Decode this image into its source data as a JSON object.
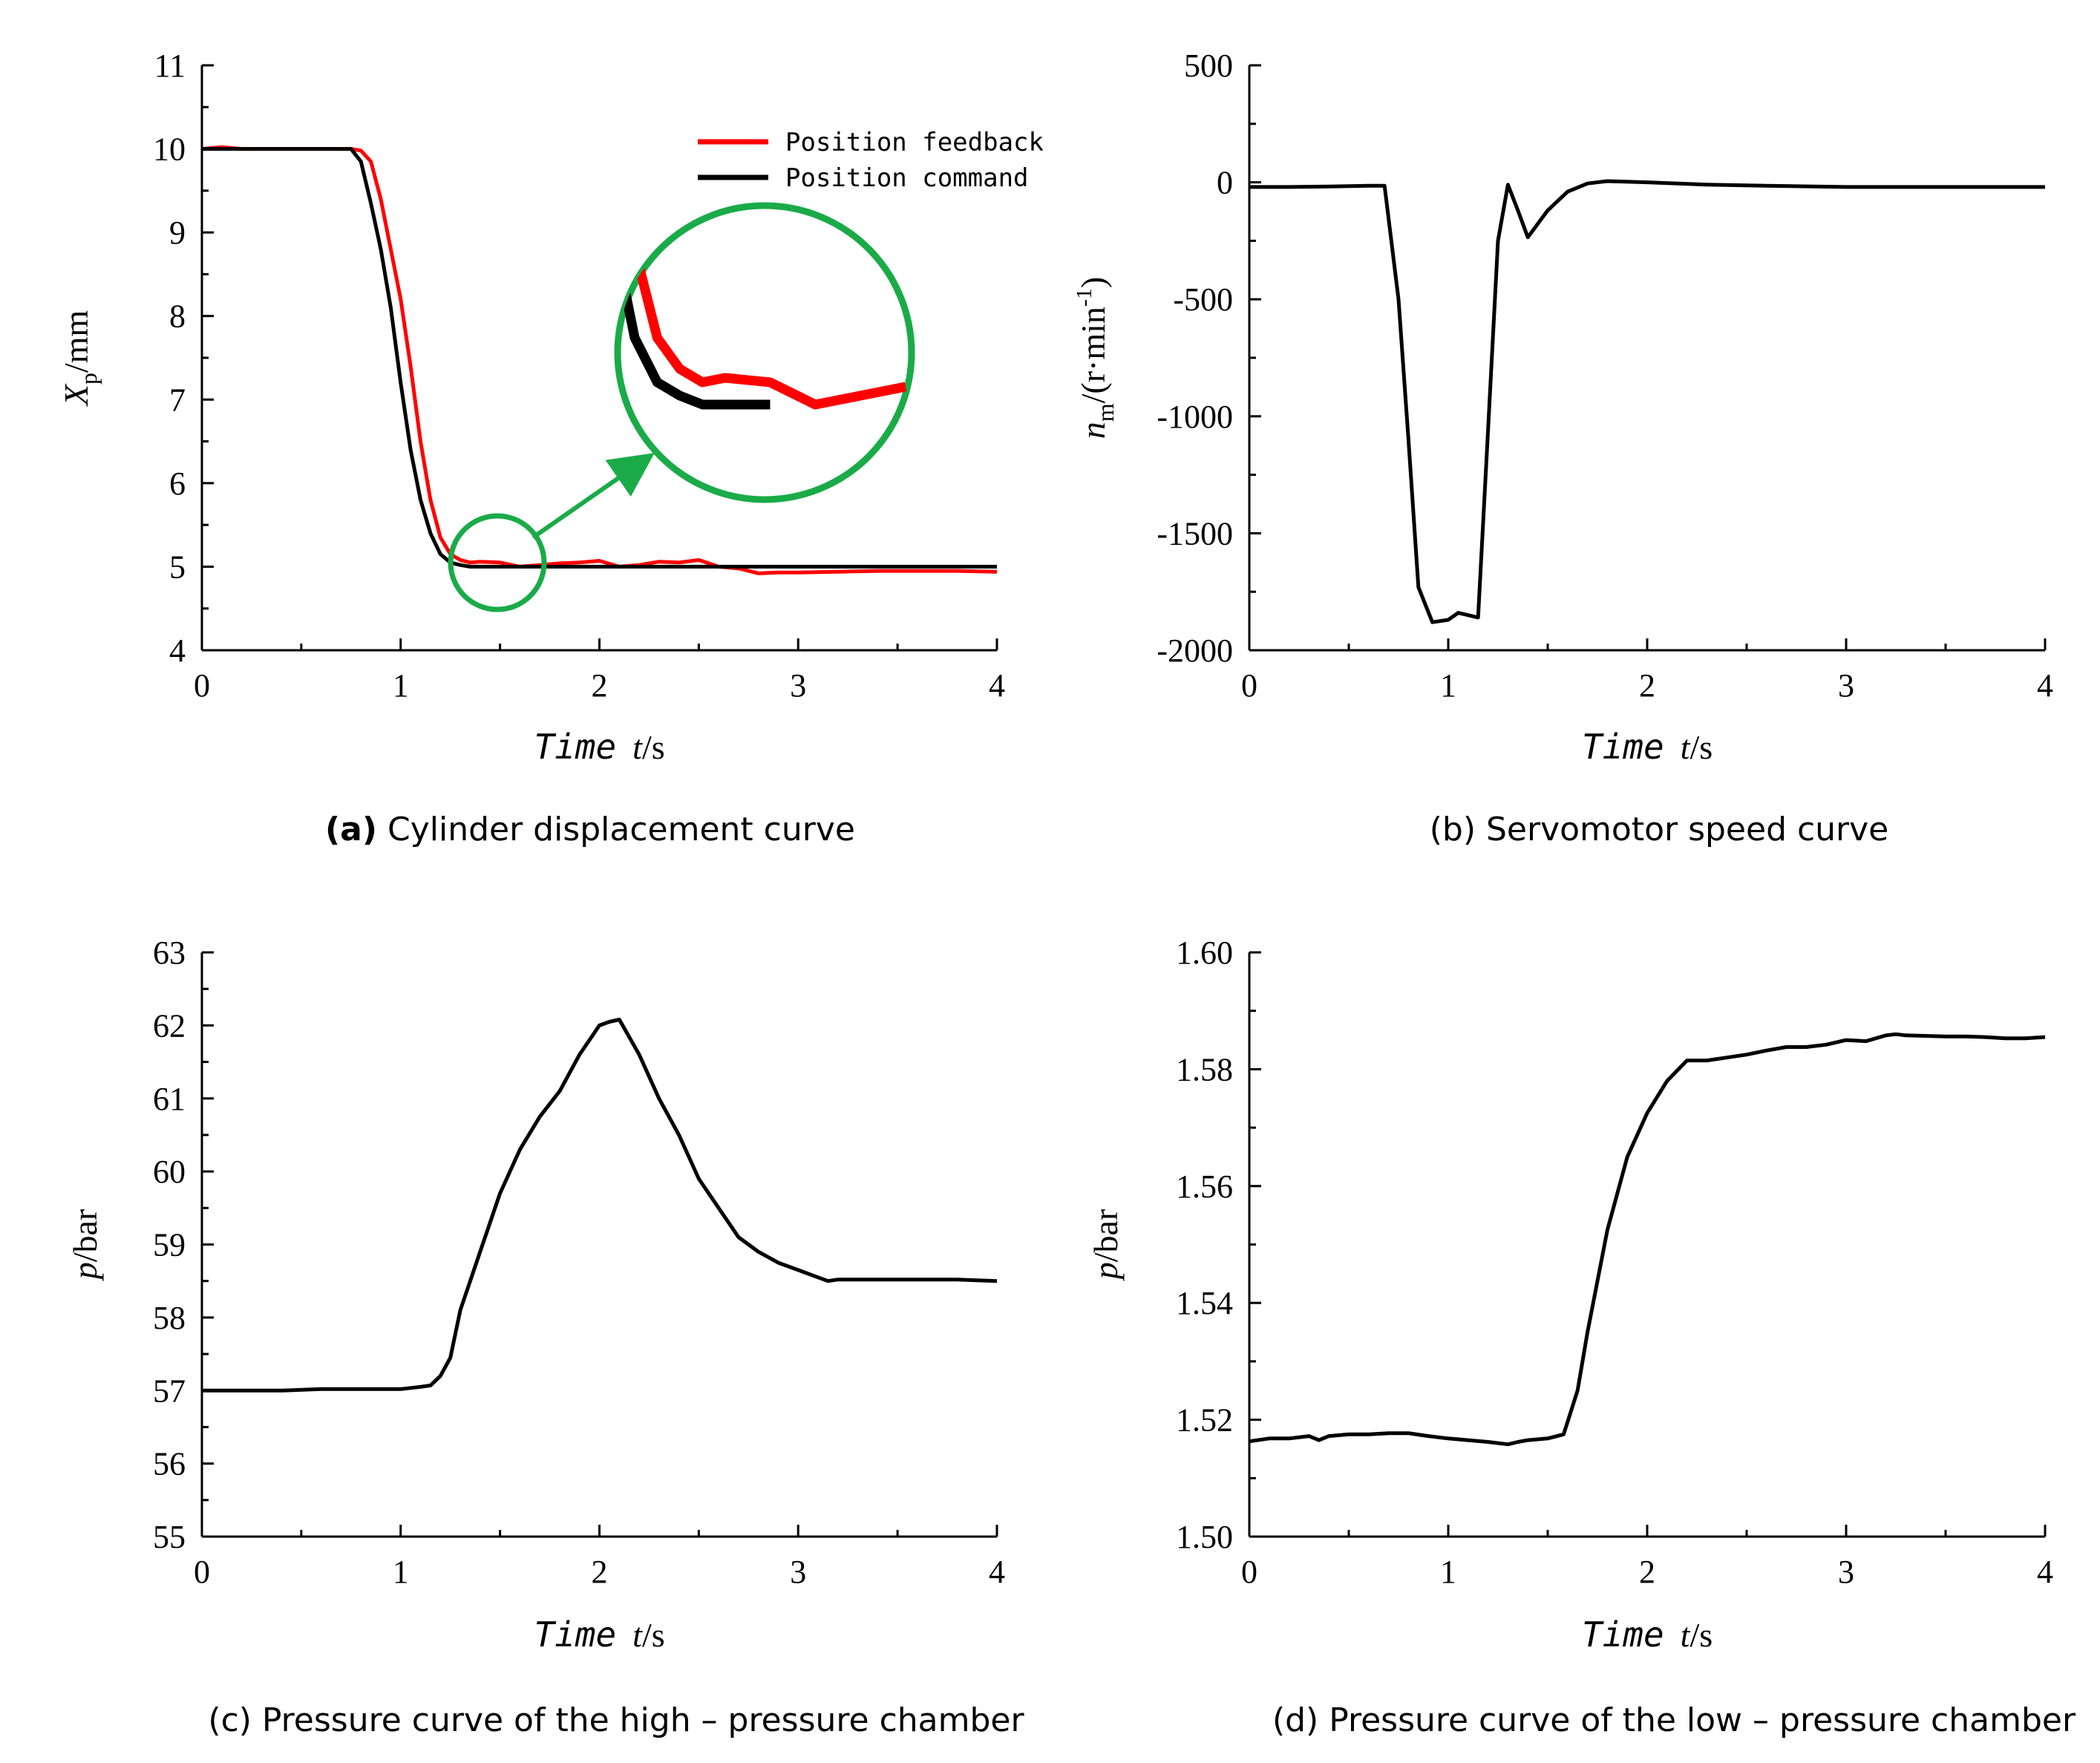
{
  "chart_data": [
    {
      "id": "a",
      "type": "line",
      "caption_bold": "(a)",
      "caption": "Cylinder displacement curve",
      "xlabel_italic": "Time",
      "xlabel_var": "t",
      "xlabel_unit": "/s",
      "ylabel_var": "X",
      "ylabel_sub": "p",
      "ylabel_unit": "/mm",
      "xlim": [
        0,
        4
      ],
      "ylim": [
        4,
        11
      ],
      "xticks": [
        0,
        1,
        2,
        3,
        4
      ],
      "yticks": [
        4,
        5,
        6,
        7,
        8,
        9,
        10,
        11
      ],
      "xticklabels": [
        "0",
        "1",
        "2",
        "3",
        "4"
      ],
      "yticklabels": [
        "4",
        "5",
        "6",
        "7",
        "8",
        "9",
        "10",
        "11"
      ],
      "legend_position": "top-right",
      "has_zoom_inset": true,
      "series": [
        {
          "name": "Position feedback",
          "color": "#ff0000",
          "x": [
            0,
            0.1,
            0.2,
            0.3,
            0.4,
            0.5,
            0.6,
            0.7,
            0.75,
            0.8,
            0.85,
            0.9,
            0.95,
            1.0,
            1.05,
            1.1,
            1.15,
            1.2,
            1.25,
            1.3,
            1.35,
            1.4,
            1.5,
            1.6,
            1.7,
            1.8,
            1.9,
            2.0,
            2.1,
            2.2,
            2.3,
            2.4,
            2.5,
            2.6,
            2.7,
            2.8,
            2.9,
            3.0,
            3.2,
            3.4,
            3.6,
            3.8,
            4.0
          ],
          "y": [
            10.0,
            10.02,
            10.0,
            10.0,
            10.0,
            10.0,
            10.0,
            10.0,
            10.0,
            9.98,
            9.85,
            9.4,
            8.8,
            8.2,
            7.4,
            6.5,
            5.8,
            5.35,
            5.15,
            5.08,
            5.05,
            5.06,
            5.05,
            5.0,
            5.02,
            5.04,
            5.05,
            5.07,
            5.0,
            5.02,
            5.06,
            5.05,
            5.08,
            5.0,
            4.98,
            4.92,
            4.93,
            4.93,
            4.94,
            4.95,
            4.95,
            4.95,
            4.94
          ]
        },
        {
          "name": "Position command",
          "color": "#000000",
          "x": [
            0,
            0.1,
            0.2,
            0.3,
            0.4,
            0.5,
            0.6,
            0.7,
            0.75,
            0.8,
            0.85,
            0.9,
            0.95,
            1.0,
            1.05,
            1.1,
            1.15,
            1.2,
            1.25,
            1.3,
            1.35,
            1.4,
            1.5,
            2.0,
            2.5,
            3.0,
            3.5,
            4.0
          ],
          "y": [
            10.0,
            10.0,
            10.0,
            10.0,
            10.0,
            10.0,
            10.0,
            10.0,
            10.0,
            9.85,
            9.35,
            8.8,
            8.1,
            7.2,
            6.4,
            5.8,
            5.4,
            5.15,
            5.05,
            5.02,
            5.0,
            5.0,
            5.0,
            5.0,
            5.0,
            5.0,
            5.0,
            5.0
          ]
        }
      ]
    },
    {
      "id": "b",
      "type": "line",
      "caption": "(b) Servomotor speed curve",
      "xlabel_italic": "Time",
      "xlabel_var": "t",
      "xlabel_unit": "/s",
      "ylabel_var": "n",
      "ylabel_sub": "m",
      "ylabel_unit": "/(r·min",
      "ylabel_sup": "-1",
      "ylabel_close": ")",
      "xlim": [
        0,
        4
      ],
      "ylim": [
        -2000,
        500
      ],
      "xticks": [
        0,
        1,
        2,
        3,
        4
      ],
      "yticks": [
        -2000,
        -1500,
        -1000,
        -500,
        0,
        500
      ],
      "xticklabels": [
        "0",
        "1",
        "2",
        "3",
        "4"
      ],
      "yticklabels": [
        "-2000",
        "-1500",
        "-1000",
        "-500",
        "0",
        "500"
      ],
      "series": [
        {
          "color": "#000000",
          "x": [
            0,
            0.2,
            0.4,
            0.6,
            0.68,
            0.75,
            0.8,
            0.85,
            0.92,
            1.0,
            1.05,
            1.1,
            1.15,
            1.2,
            1.25,
            1.3,
            1.35,
            1.4,
            1.5,
            1.6,
            1.7,
            1.8,
            2.0,
            2.3,
            2.6,
            3.0,
            3.5,
            4.0
          ],
          "y": [
            -20,
            -20,
            -18,
            -15,
            -15,
            -500,
            -1100,
            -1730,
            -1880,
            -1870,
            -1840,
            -1850,
            -1860,
            -1060,
            -250,
            -10,
            -120,
            -235,
            -120,
            -40,
            -5,
            5,
            0,
            -10,
            -15,
            -20,
            -20,
            -20
          ]
        }
      ]
    },
    {
      "id": "c",
      "type": "line",
      "caption": "(c) Pressure curve of the high – pressure chamber",
      "xlabel_italic": "Time",
      "xlabel_var": "t",
      "xlabel_unit": "/s",
      "ylabel_var": "p",
      "ylabel_unit": "/bar",
      "xlim": [
        0,
        4
      ],
      "ylim": [
        55,
        63
      ],
      "xticks": [
        0,
        1,
        2,
        3,
        4
      ],
      "yticks": [
        55,
        56,
        57,
        58,
        59,
        60,
        61,
        62,
        63
      ],
      "xticklabels": [
        "0",
        "1",
        "2",
        "3",
        "4"
      ],
      "yticklabels": [
        "55",
        "56",
        "57",
        "58",
        "59",
        "60",
        "61",
        "62",
        "63"
      ],
      "series": [
        {
          "color": "#000000",
          "x": [
            0,
            0.2,
            0.4,
            0.6,
            0.8,
            1.0,
            1.1,
            1.15,
            1.2,
            1.25,
            1.3,
            1.4,
            1.5,
            1.6,
            1.7,
            1.8,
            1.9,
            2.0,
            2.05,
            2.1,
            2.2,
            2.3,
            2.4,
            2.5,
            2.6,
            2.7,
            2.8,
            2.9,
            3.0,
            3.1,
            3.15,
            3.2,
            3.4,
            3.6,
            3.8,
            4.0
          ],
          "y": [
            57.0,
            57.0,
            57.0,
            57.02,
            57.02,
            57.02,
            57.05,
            57.07,
            57.2,
            57.45,
            58.1,
            58.9,
            59.7,
            60.3,
            60.75,
            61.1,
            61.6,
            62.0,
            62.05,
            62.08,
            61.6,
            61.0,
            60.5,
            59.9,
            59.5,
            59.1,
            58.9,
            58.75,
            58.65,
            58.55,
            58.5,
            58.52,
            58.52,
            58.52,
            58.52,
            58.5
          ]
        }
      ]
    },
    {
      "id": "d",
      "type": "line",
      "caption": "(d) Pressure curve of the low – pressure chamber",
      "xlabel_italic": "Time",
      "xlabel_var": "t",
      "xlabel_unit": "/s",
      "ylabel_var": "p",
      "ylabel_unit": "/bar",
      "xlim": [
        0,
        4
      ],
      "ylim": [
        1.5,
        1.6
      ],
      "xticks": [
        0,
        1,
        2,
        3,
        4
      ],
      "yticks": [
        1.5,
        1.52,
        1.54,
        1.56,
        1.58,
        1.6
      ],
      "xticklabels": [
        "0",
        "1",
        "2",
        "3",
        "4"
      ],
      "yticklabels": [
        "1.50",
        "1.52",
        "1.54",
        "1.56",
        "1.58",
        "1.60"
      ],
      "series": [
        {
          "color": "#000000",
          "x": [
            0,
            0.1,
            0.2,
            0.3,
            0.35,
            0.4,
            0.5,
            0.6,
            0.7,
            0.8,
            0.9,
            1.0,
            1.1,
            1.2,
            1.3,
            1.35,
            1.4,
            1.5,
            1.58,
            1.65,
            1.7,
            1.8,
            1.9,
            2.0,
            2.1,
            2.2,
            2.3,
            2.4,
            2.5,
            2.6,
            2.7,
            2.8,
            2.9,
            3.0,
            3.1,
            3.2,
            3.25,
            3.3,
            3.4,
            3.5,
            3.6,
            3.7,
            3.8,
            3.9,
            4.0
          ],
          "y": [
            1.5163,
            1.5168,
            1.5168,
            1.5172,
            1.5165,
            1.5172,
            1.5175,
            1.5175,
            1.5177,
            1.5177,
            1.5172,
            1.5168,
            1.5165,
            1.5162,
            1.5158,
            1.5162,
            1.5165,
            1.5168,
            1.5175,
            1.525,
            1.535,
            1.5525,
            1.565,
            1.5725,
            1.578,
            1.5815,
            1.5815,
            1.582,
            1.5825,
            1.5832,
            1.5838,
            1.5838,
            1.5842,
            1.585,
            1.5848,
            1.5858,
            1.586,
            1.5858,
            1.5857,
            1.5856,
            1.5856,
            1.5855,
            1.5853,
            1.5853,
            1.5855
          ]
        }
      ]
    }
  ]
}
